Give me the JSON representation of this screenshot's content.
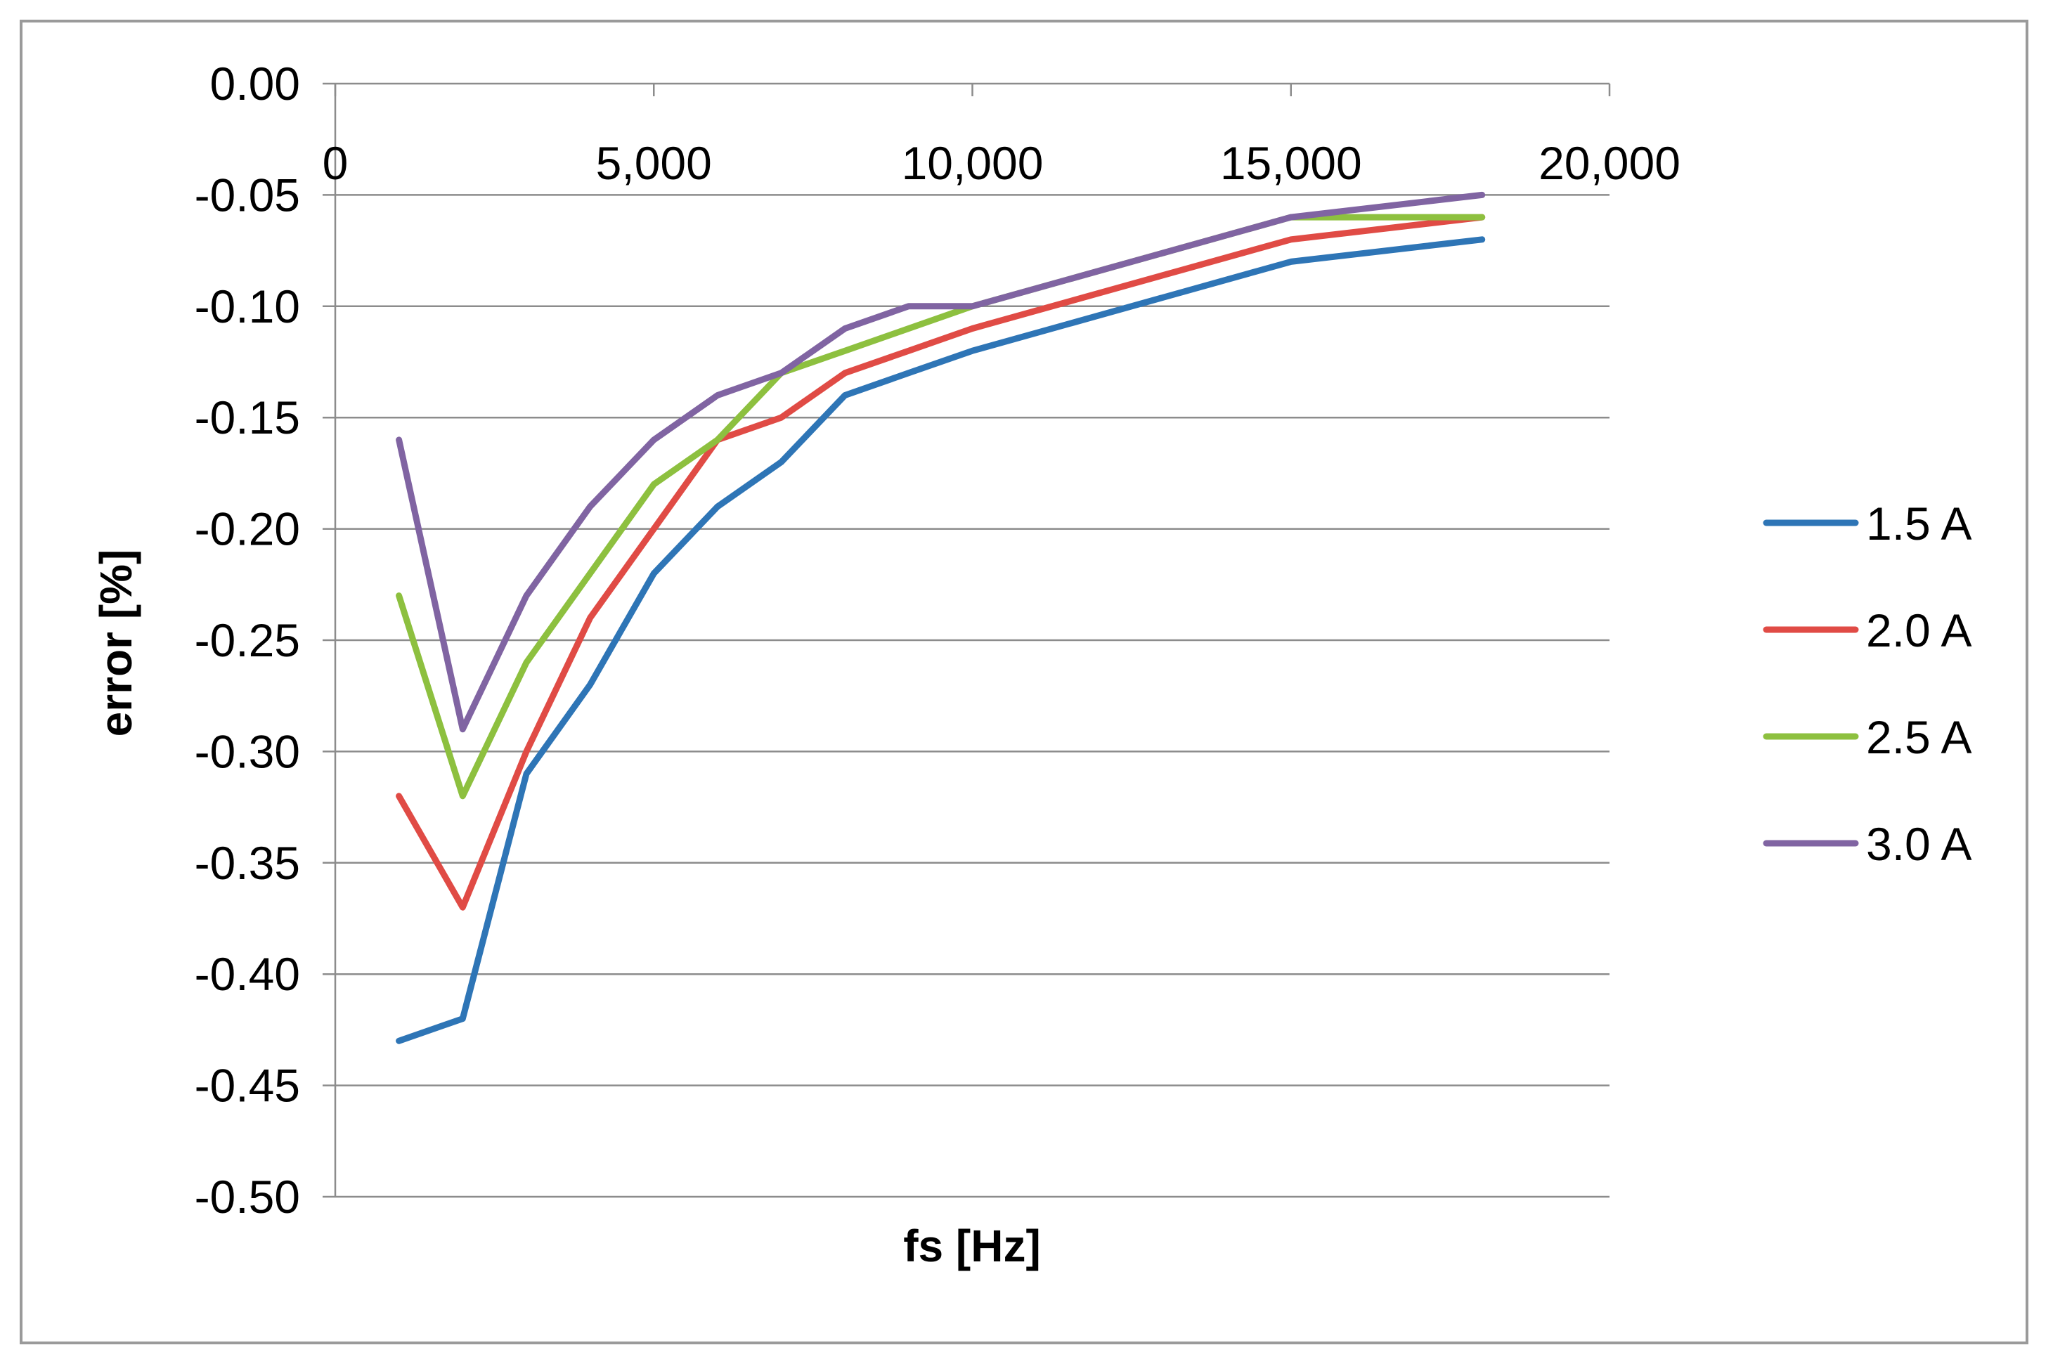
{
  "chart_data": {
    "type": "line",
    "title": "",
    "xlabel": "fs [Hz]",
    "ylabel": "error [%]",
    "xlim": [
      0,
      20000
    ],
    "ylim": [
      -0.5,
      0.0
    ],
    "x_ticks": [
      0,
      5000,
      10000,
      15000,
      20000
    ],
    "x_tick_labels": [
      "0",
      "5,000",
      "10,000",
      "15,000",
      "20,000"
    ],
    "y_ticks": [
      0.0,
      -0.05,
      -0.1,
      -0.15,
      -0.2,
      -0.25,
      -0.3,
      -0.35,
      -0.4,
      -0.45,
      -0.5
    ],
    "y_tick_labels": [
      "0.00",
      "-0.05",
      "-0.10",
      "-0.15",
      "-0.20",
      "-0.25",
      "-0.30",
      "-0.35",
      "-0.40",
      "-0.45",
      "-0.50"
    ],
    "x_axis_position": "top",
    "grid": true,
    "legend_position": "right",
    "x": [
      1000,
      2000,
      3000,
      4000,
      5000,
      6000,
      7000,
      8000,
      9000,
      10000,
      15000,
      18000
    ],
    "series": [
      {
        "name": "1.5 A",
        "color": "#2E75B6",
        "values": [
          -0.43,
          -0.42,
          -0.31,
          -0.27,
          -0.22,
          -0.19,
          -0.17,
          -0.14,
          -0.13,
          -0.12,
          -0.08,
          -0.07
        ]
      },
      {
        "name": "2.0 A",
        "color": "#E04B45",
        "values": [
          -0.32,
          -0.37,
          -0.3,
          -0.24,
          -0.2,
          -0.16,
          -0.15,
          -0.13,
          -0.12,
          -0.11,
          -0.07,
          -0.06
        ]
      },
      {
        "name": "2.5 A",
        "color": "#8DC03F",
        "values": [
          -0.23,
          -0.32,
          -0.26,
          -0.22,
          -0.18,
          -0.16,
          -0.13,
          -0.12,
          -0.11,
          -0.1,
          -0.06,
          -0.06
        ]
      },
      {
        "name": "3.0 A",
        "color": "#8064A2",
        "values": [
          -0.16,
          -0.29,
          -0.23,
          -0.19,
          -0.16,
          -0.14,
          -0.13,
          -0.11,
          -0.1,
          -0.1,
          -0.06,
          -0.05
        ]
      }
    ]
  }
}
